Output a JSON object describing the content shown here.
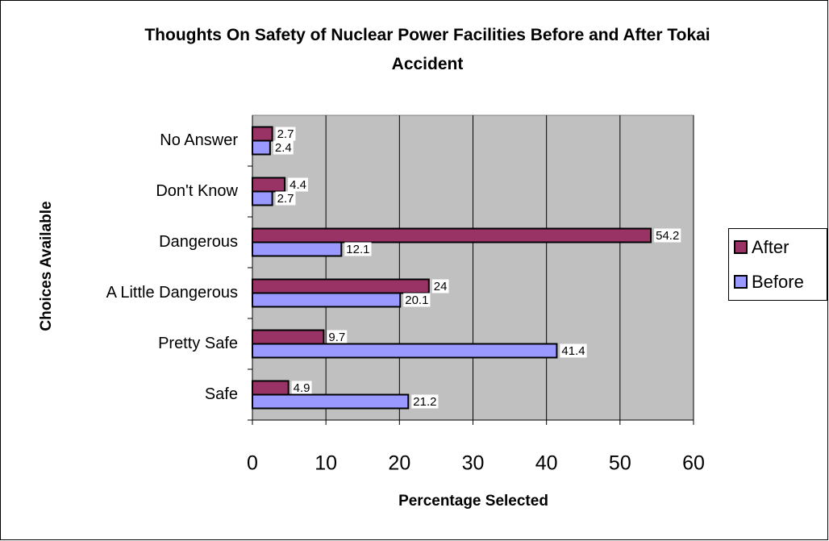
{
  "chart_data": {
    "type": "bar",
    "orientation": "horizontal",
    "title": "Thoughts On Safety of Nuclear Power Facilities Before and After Tokai Accident",
    "x_label": "Percentage Selected",
    "y_label": "Choices Available",
    "categories": [
      "Safe",
      "Pretty Safe",
      "A Little Dangerous",
      "Dangerous",
      "Don't Know",
      "No Answer"
    ],
    "series": [
      {
        "name": "After",
        "color": "#993366",
        "values": [
          4.9,
          9.7,
          24,
          54.2,
          4.4,
          2.7
        ]
      },
      {
        "name": "Before",
        "color": "#9999ff",
        "values": [
          21.2,
          41.4,
          20.1,
          12.1,
          2.7,
          2.4
        ]
      }
    ],
    "xlim": [
      0,
      60
    ],
    "xticks": [
      0,
      10,
      20,
      30,
      40,
      50,
      60
    ],
    "grid": true,
    "legend": "right"
  }
}
